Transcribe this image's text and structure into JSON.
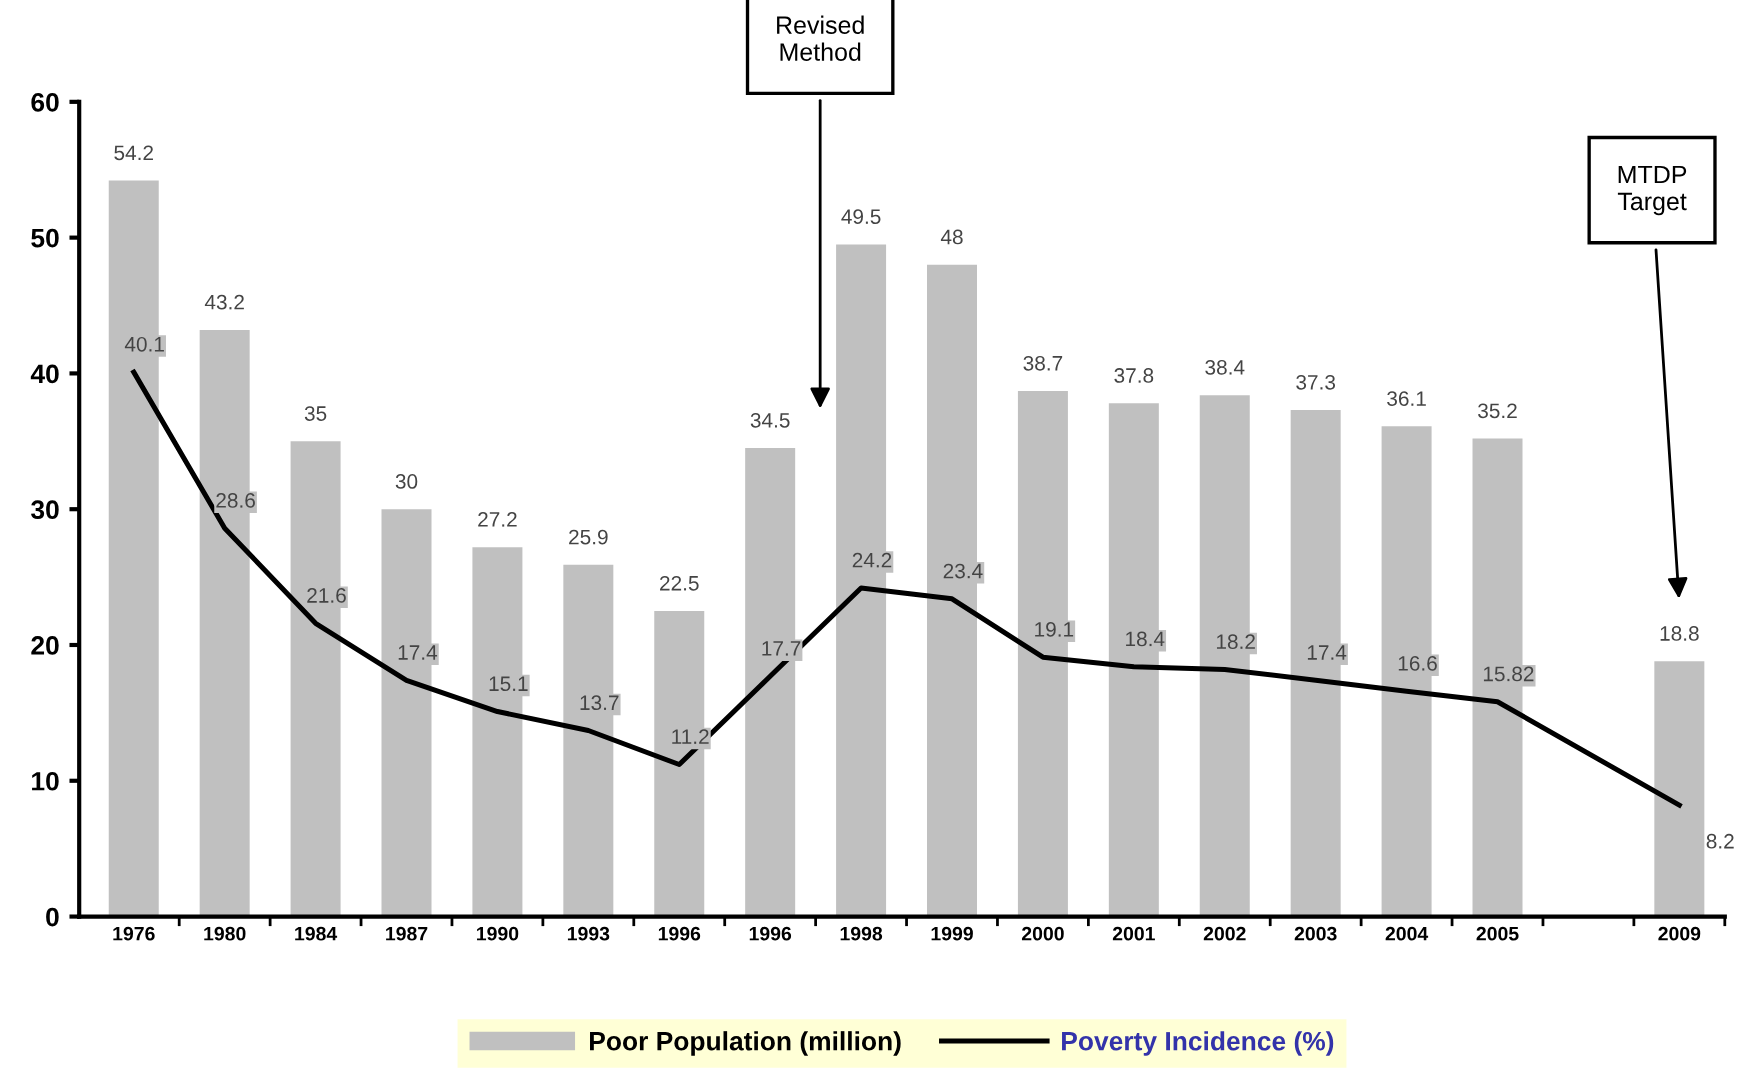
{
  "chart_data": {
    "type": "bar",
    "categories": [
      "1976",
      "1980",
      "1984",
      "1987",
      "1990",
      "1993",
      "1996",
      "1996",
      "1998",
      "1999",
      "2000",
      "2001",
      "2002",
      "2003",
      "2004",
      "2005",
      null,
      "2009"
    ],
    "series": [
      {
        "name": "Poor Population (million)",
        "color": "#c0c0c0",
        "values": [
          54.2,
          43.2,
          35,
          30,
          27.2,
          25.9,
          22.5,
          34.5,
          49.5,
          48,
          38.7,
          37.8,
          38.4,
          37.3,
          36.1,
          35.2,
          null,
          18.8
        ]
      },
      {
        "name": "Poverty Incidence (%)",
        "type": "line",
        "color": "#000000",
        "values": [
          40.1,
          28.6,
          21.6,
          17.4,
          15.1,
          13.7,
          11.2,
          17.7,
          24.2,
          23.4,
          19.1,
          18.4,
          18.2,
          17.4,
          16.6,
          15.82,
          null,
          8.2
        ],
        "value_labels": [
          "40.1",
          "28.6",
          "21.6",
          "17.4",
          "15.1",
          "13.7",
          "11.2",
          "17.7",
          "24.2",
          "23.4",
          "19.1",
          "18.4",
          "18.2",
          "17.4",
          "16.6",
          "15.82",
          null,
          "8.2"
        ]
      }
    ],
    "ylim": [
      0,
      60
    ],
    "yticks": [
      0,
      10,
      20,
      30,
      40,
      50,
      60
    ],
    "data_labels": true,
    "legend": "bottom",
    "marker": "none",
    "line_style": "solid",
    "grid": false,
    "annotations": [
      "Revised Method",
      "MTDP Target"
    ]
  }
}
